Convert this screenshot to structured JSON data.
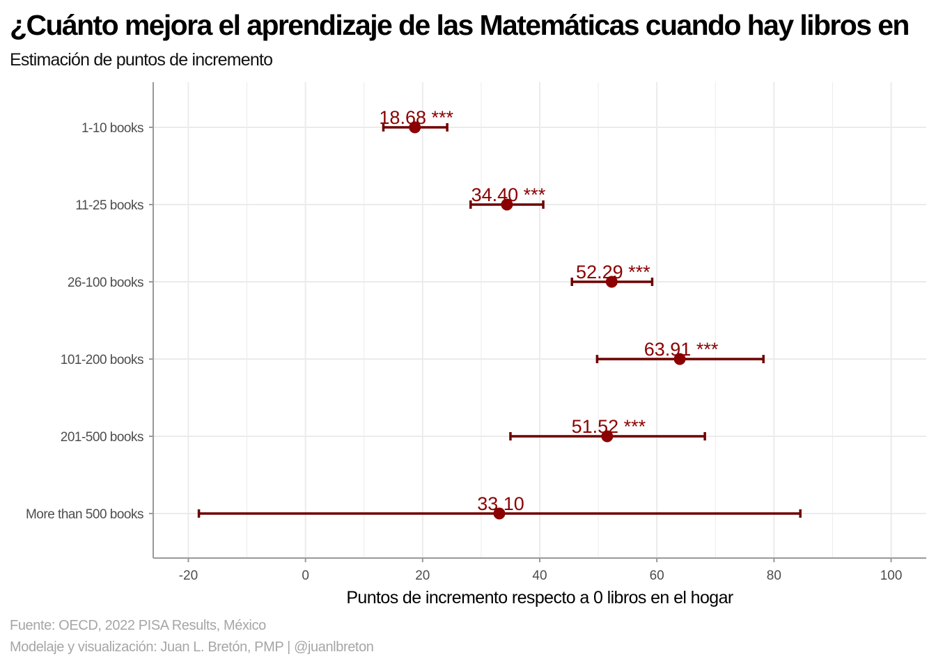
{
  "title": "¿Cuánto mejora el aprendizaje de las Matemáticas cuando hay libros en",
  "subtitle": "Estimación de puntos de incremento",
  "caption": {
    "source": "Fuente: OECD, 2022 PISA Results, México",
    "credit": "Modelaje y visualización: Juan L. Bretón, PMP | @juanlbreton"
  },
  "colors": {
    "point": "#8b0000",
    "errorbar": "#6e0000",
    "grid": "#ebebeb",
    "axis": "#999999"
  },
  "chart_data": {
    "type": "scatter",
    "subtype": "point-estimate with confidence interval",
    "xlabel": "Puntos de incremento respecto a 0 libros en el hogar",
    "xlim": [
      -26,
      106
    ],
    "xticks": [
      -20,
      0,
      20,
      40,
      60,
      80,
      100
    ],
    "grid": true,
    "categories": [
      "1-10 books",
      "11-25 books",
      "26-100 books",
      "101-200 books",
      "201-500 books",
      "More than 500 books"
    ],
    "estimates": [
      18.68,
      34.4,
      52.29,
      63.91,
      51.52,
      33.1
    ],
    "ci_low": [
      13.3,
      28.2,
      45.5,
      49.8,
      35.0,
      -18.2
    ],
    "ci_high": [
      24.2,
      40.6,
      59.2,
      78.2,
      68.2,
      84.5
    ],
    "labels": [
      "18.68 ***",
      "34.40 ***",
      "52.29 ***",
      "63.91 ***",
      "51.52 ***",
      "33.10"
    ]
  }
}
